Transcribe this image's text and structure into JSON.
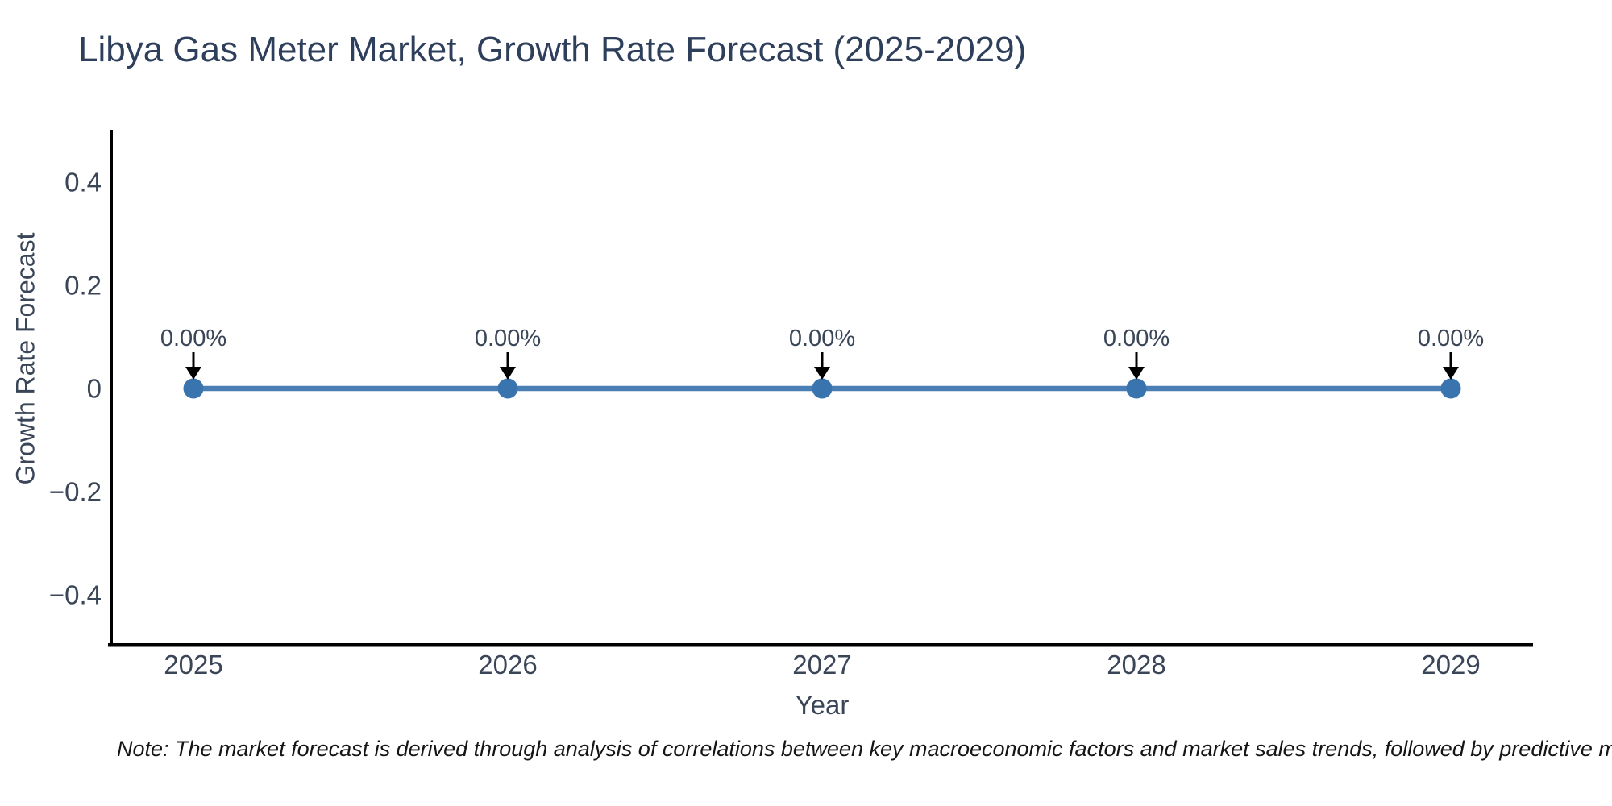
{
  "title": "Libya Gas Meter Market, Growth Rate Forecast (2025-2029)",
  "note": "Note: The market forecast is derived through analysis of correlations between key macroeconomic factors and market sales trends, followed by predictive modeling to project future sales.",
  "chart_data": {
    "type": "line",
    "title": "Libya Gas Meter Market, Growth Rate Forecast (2025-2029)",
    "xlabel": "Year",
    "ylabel": "Growth Rate Forecast",
    "x": [
      2025,
      2026,
      2027,
      2028,
      2029
    ],
    "xtick_labels": [
      "2025",
      "2026",
      "2027",
      "2028",
      "2029"
    ],
    "series": [
      {
        "name": "Growth Rate Forecast",
        "values": [
          0,
          0,
          0,
          0,
          0
        ]
      }
    ],
    "point_labels": [
      "0.00%",
      "0.00%",
      "0.00%",
      "0.00%",
      "0.00%"
    ],
    "yticks": [
      0.4,
      0.2,
      0,
      -0.2,
      -0.4
    ],
    "ytick_labels": [
      "0.4",
      "0.2",
      "0",
      "−0.2",
      "−0.4"
    ],
    "ylim": [
      -0.5,
      0.5
    ],
    "grid": false,
    "legend_position": "none",
    "line_color": "#4a7fb5",
    "marker_color": "#3a74ae",
    "axis_color": "#000000",
    "tick_text_color": "#3a4657",
    "annotation_arrow_color": "#000000",
    "title_color": "#2e3f5c"
  }
}
